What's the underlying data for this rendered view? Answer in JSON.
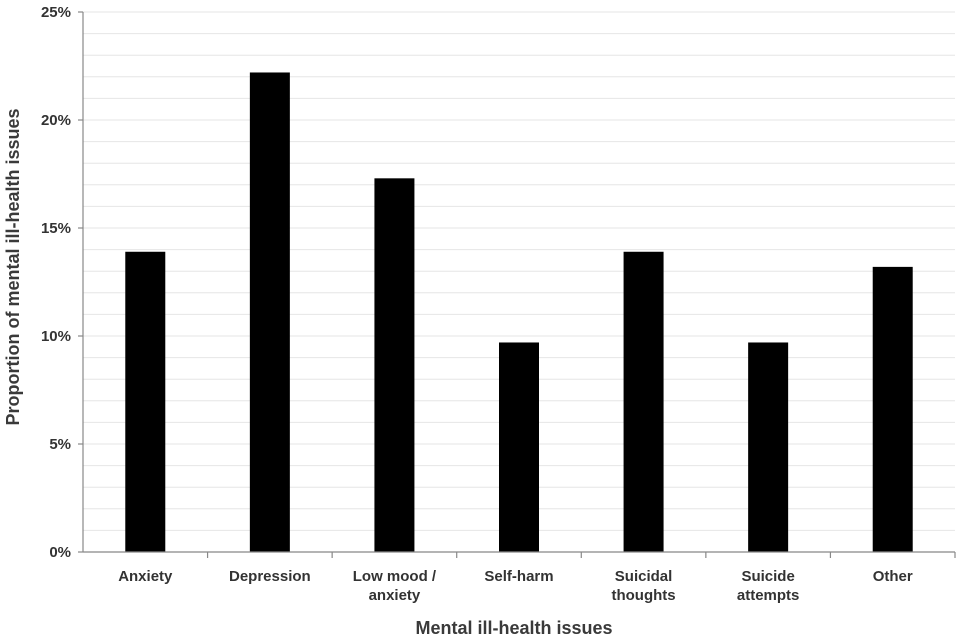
{
  "chart_data": {
    "type": "bar",
    "title": "",
    "xlabel": "Mental ill-health issues",
    "ylabel": "Proportion of mental ill-health issues",
    "categories": [
      [
        "Anxiety"
      ],
      [
        "Depression"
      ],
      [
        "Low mood /",
        "anxiety"
      ],
      [
        "Self-harm"
      ],
      [
        "Suicidal",
        "thoughts"
      ],
      [
        "Suicide",
        "attempts"
      ],
      [
        "Other"
      ]
    ],
    "values": [
      13.9,
      22.2,
      17.3,
      9.7,
      13.9,
      9.7,
      13.2
    ],
    "ylim": [
      0,
      25
    ],
    "yticks": [
      0,
      5,
      10,
      15,
      20,
      25
    ],
    "ytick_labels": [
      "0%",
      "5%",
      "10%",
      "15%",
      "20%",
      "25%"
    ],
    "grid": true,
    "bar_color": "#000000"
  }
}
